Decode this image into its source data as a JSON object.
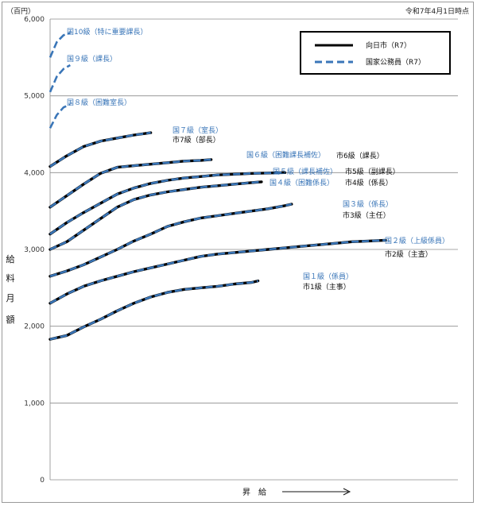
{
  "chart_data": {
    "type": "line",
    "unit_label": "（百円）",
    "as_of": "令和7年4月1日時点",
    "ylabel_chars": [
      "給",
      "料",
      "月",
      "額"
    ],
    "xlabel": "昇　給",
    "ylim": [
      0,
      6000
    ],
    "yticks": [
      0,
      1000,
      2000,
      3000,
      4000,
      5000,
      6000
    ],
    "ytick_labels": [
      "0",
      "1,000",
      "2,000",
      "3,000",
      "4,000",
      "5,000",
      "6,000"
    ],
    "grid": true,
    "legend": {
      "placement": "top-right",
      "entries": [
        {
          "label": "向日市（R7）",
          "style": "solid",
          "color": "#000000"
        },
        {
          "label": "国家公務員（R7）",
          "style": "dashed",
          "color": "#3a76b8"
        }
      ]
    },
    "x_range": [
      0,
      100
    ],
    "series": [
      {
        "national_label": "国１級（係員）",
        "city_label": "市1級（主事）",
        "x": [
          0,
          5,
          10,
          15,
          20,
          25,
          30,
          35,
          40,
          45,
          50,
          55,
          60,
          62
        ],
        "values": [
          1830,
          1880,
          1990,
          2090,
          2200,
          2300,
          2380,
          2440,
          2480,
          2500,
          2520,
          2550,
          2570,
          2590
        ]
      },
      {
        "national_label": "国２級（上級係員）",
        "city_label": "市2級（主査）",
        "x": [
          0,
          5,
          10,
          15,
          20,
          25,
          30,
          35,
          40,
          45,
          50,
          55,
          60,
          65,
          70,
          75,
          80,
          85,
          90,
          95,
          100
        ],
        "values": [
          2300,
          2420,
          2520,
          2590,
          2650,
          2710,
          2760,
          2810,
          2860,
          2910,
          2940,
          2960,
          2980,
          3000,
          3020,
          3040,
          3060,
          3080,
          3100,
          3110,
          3120
        ]
      },
      {
        "national_label": "国３級（係長）",
        "city_label": "市3級（主任）",
        "x": [
          0,
          5,
          10,
          15,
          20,
          25,
          30,
          35,
          40,
          45,
          50,
          55,
          60,
          65,
          70,
          72
        ],
        "values": [
          2650,
          2720,
          2800,
          2900,
          3000,
          3110,
          3200,
          3300,
          3360,
          3410,
          3440,
          3470,
          3500,
          3530,
          3570,
          3590
        ]
      },
      {
        "national_label": "国４級（困難係長）",
        "city_label": "市4級（係長）",
        "x": [
          0,
          5,
          10,
          15,
          20,
          25,
          30,
          35,
          40,
          45,
          50,
          55,
          60,
          63
        ],
        "values": [
          3000,
          3100,
          3250,
          3400,
          3550,
          3650,
          3710,
          3750,
          3780,
          3810,
          3830,
          3850,
          3870,
          3880
        ]
      },
      {
        "national_label": "国５級（課長補佐）",
        "city_label": "市5級（副課長）",
        "x": [
          0,
          5,
          10,
          15,
          20,
          25,
          30,
          35,
          40,
          45,
          50,
          55,
          60,
          65,
          70
        ],
        "values": [
          3200,
          3350,
          3480,
          3600,
          3720,
          3800,
          3860,
          3900,
          3930,
          3950,
          3970,
          3980,
          3990,
          3995,
          4000
        ]
      },
      {
        "national_label": "国６級（困難課長補佐）",
        "city_label": "市6級（課長）",
        "x": [
          0,
          5,
          10,
          15,
          20,
          25,
          30,
          35,
          40,
          45,
          48
        ],
        "values": [
          3550,
          3700,
          3850,
          3990,
          4070,
          4090,
          4110,
          4130,
          4150,
          4160,
          4170
        ]
      },
      {
        "national_label": "国７級（室長）",
        "city_label": "市7級（部長）",
        "x": [
          0,
          5,
          10,
          15,
          20,
          25,
          30
        ],
        "values": [
          4080,
          4220,
          4340,
          4410,
          4450,
          4490,
          4520
        ]
      },
      {
        "national_label": "国８級（困難室長）",
        "x": [
          0,
          2,
          4,
          6
        ],
        "values": [
          4580,
          4750,
          4850,
          4890
        ]
      },
      {
        "national_label": "国９級（課長）",
        "x": [
          0,
          2,
          4,
          6
        ],
        "values": [
          5050,
          5250,
          5350,
          5400
        ]
      },
      {
        "national_label": "国10級（特に重要課長）",
        "x": [
          0,
          2,
          4,
          6
        ],
        "values": [
          5500,
          5700,
          5790,
          5820
        ]
      }
    ]
  }
}
